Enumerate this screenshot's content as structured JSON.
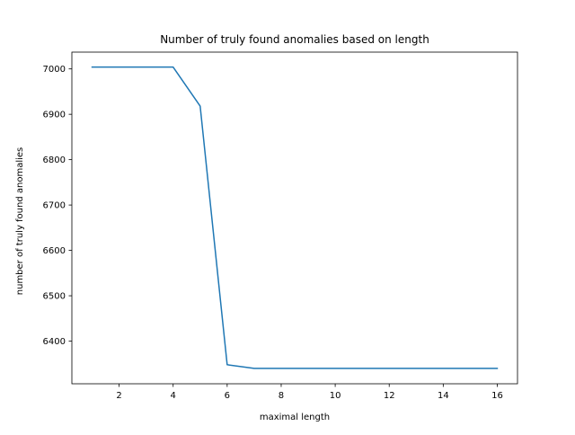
{
  "chart_data": {
    "type": "line",
    "title": "Number of truly found anomalies based on length",
    "xlabel": "maximal length",
    "ylabel": "number of truly found anomalies",
    "x": [
      1,
      2,
      3,
      4,
      5,
      6,
      7,
      8,
      9,
      10,
      11,
      12,
      13,
      14,
      15,
      16
    ],
    "series": [
      {
        "color": "#1f77b4",
        "values": [
          7004,
          7004,
          7004,
          7004,
          6918,
          6348,
          6340,
          6340,
          6340,
          6340,
          6340,
          6340,
          6340,
          6340,
          6340,
          6340
        ]
      }
    ],
    "xlim": [
      0.25,
      16.75
    ],
    "ylim": [
      6306,
      7037
    ],
    "xticks": [
      2,
      4,
      6,
      8,
      10,
      12,
      14,
      16
    ],
    "yticks": [
      6400,
      6500,
      6600,
      6700,
      6800,
      6900,
      7000
    ],
    "grid": false,
    "legend": false
  }
}
